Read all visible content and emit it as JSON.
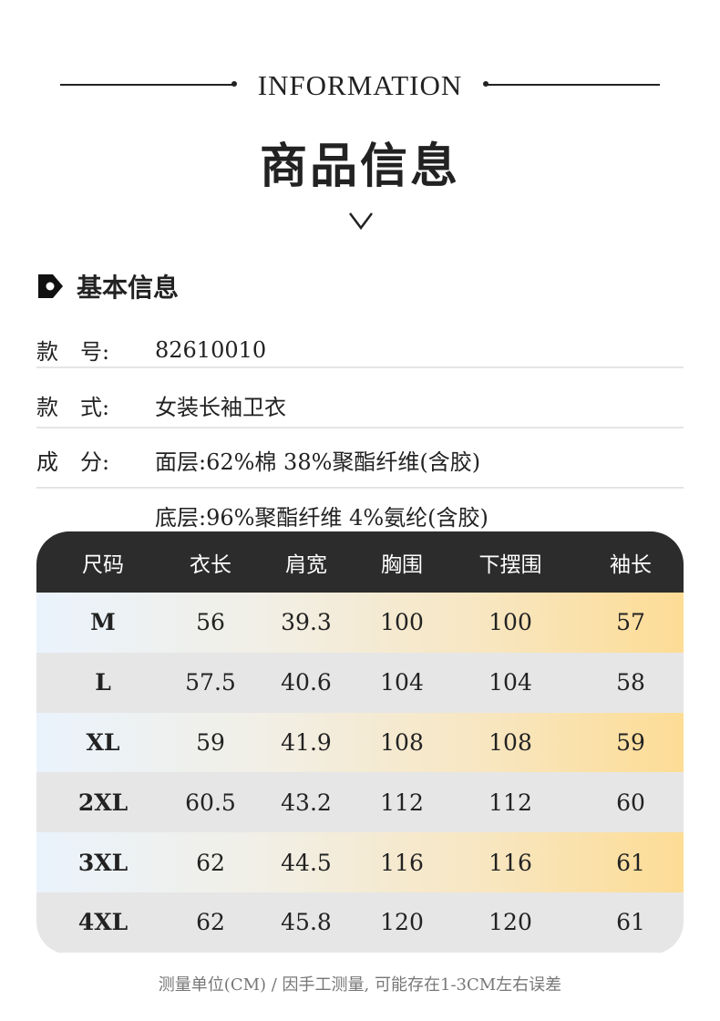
{
  "header": {
    "subtitle": "INFORMATION",
    "title": "商品信息"
  },
  "section": {
    "title": "基本信息"
  },
  "basic_info": [
    {
      "label": "款　号:",
      "value": "82610010"
    },
    {
      "label": "款　式:",
      "value": "女装长袖卫衣"
    },
    {
      "label": "成　分:",
      "value": "面层:62%棉 38%聚酯纤维(含胶)"
    },
    {
      "label": "",
      "value": "底层:96%聚酯纤维 4%氨纶(含胶)"
    }
  ],
  "size_table": {
    "headers": [
      "尺码",
      "衣长",
      "肩宽",
      "胸围",
      "下摆围",
      "袖长"
    ],
    "rows": [
      [
        "M",
        "56",
        "39.3",
        "100",
        "100",
        "57"
      ],
      [
        "L",
        "57.5",
        "40.6",
        "104",
        "104",
        "58"
      ],
      [
        "XL",
        "59",
        "41.9",
        "108",
        "108",
        "59"
      ],
      [
        "2XL",
        "60.5",
        "43.2",
        "112",
        "112",
        "60"
      ],
      [
        "3XL",
        "62",
        "44.5",
        "116",
        "116",
        "61"
      ],
      [
        "4XL",
        "62",
        "45.8",
        "120",
        "120",
        "61"
      ]
    ]
  },
  "note": "测量单位(CM) /  因手工测量, 可能存在1-3CM左右误差",
  "colors": {
    "header_bg": "#2c2c2c",
    "accent_yellow": "#fddc95",
    "accent_blue": "#eaf3fc",
    "row_gray": "#e6e6e6"
  }
}
